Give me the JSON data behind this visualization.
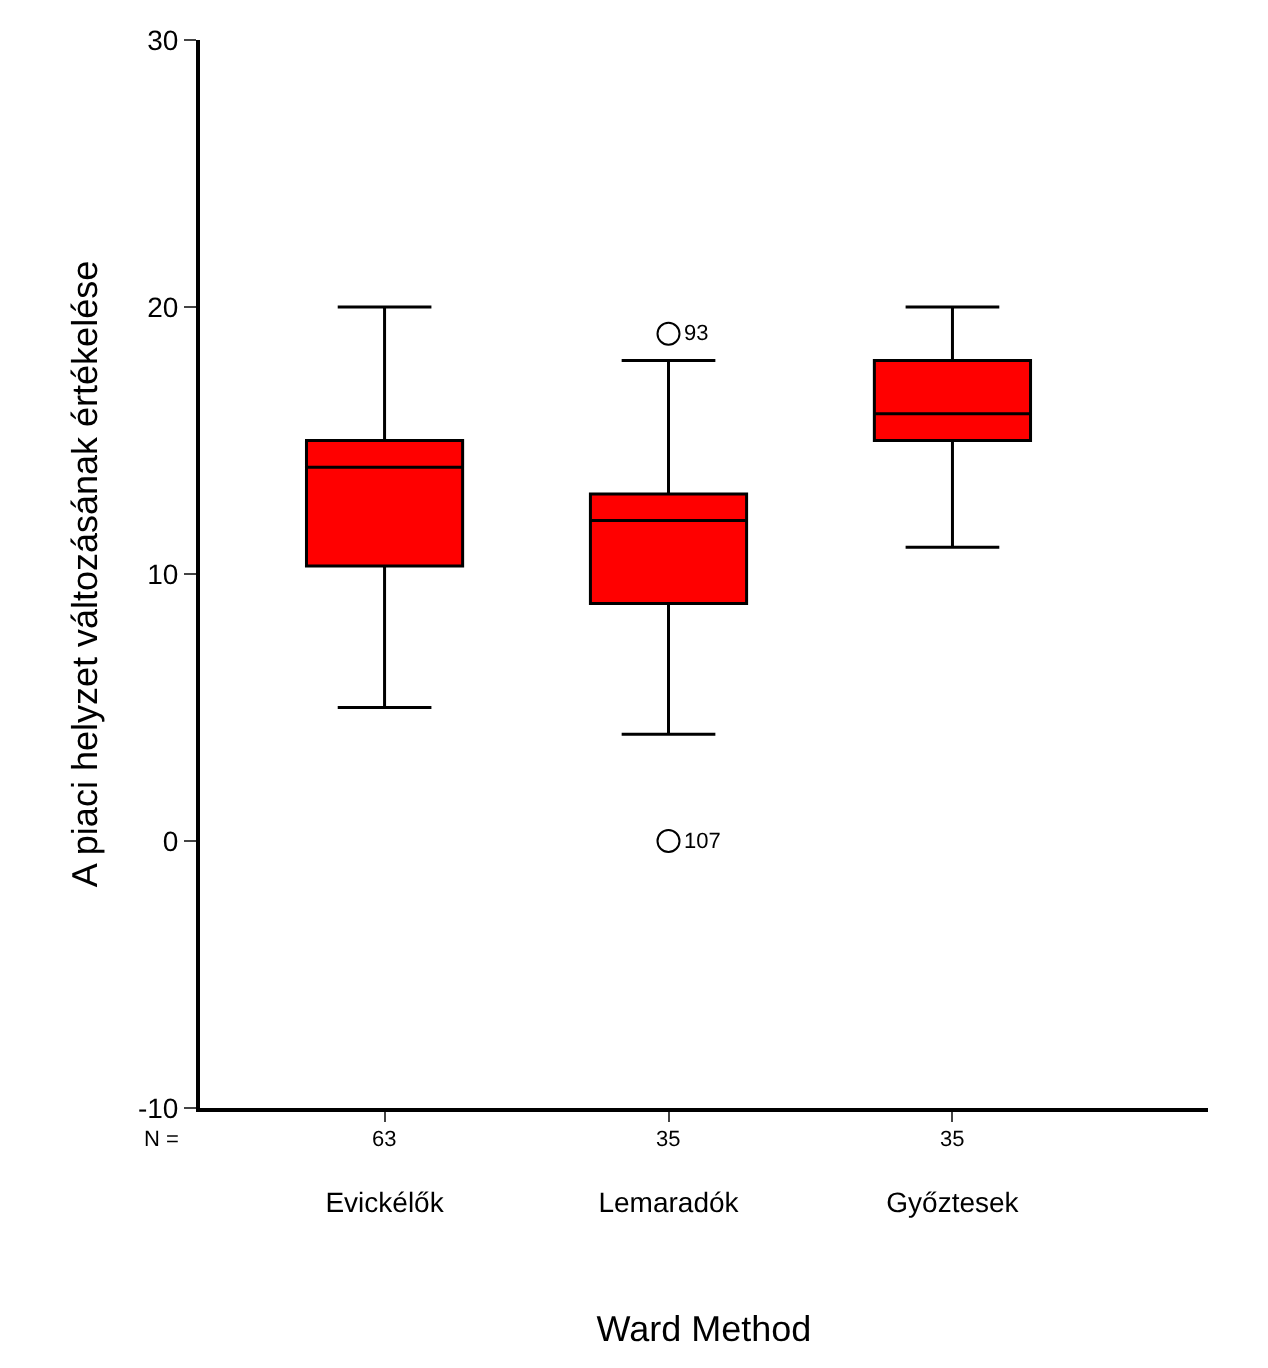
{
  "chart_data": {
    "type": "box",
    "ylabel": "A piaci helyzet változásának értékelése",
    "xlabel": "Ward Method",
    "categories": [
      "Evickélők",
      "Lemaradók",
      "Győztesek"
    ],
    "color": "#ff0000",
    "boxes": [
      {
        "low": 5,
        "q1": 10.3,
        "median": 14,
        "q3": 15,
        "high": 20
      },
      {
        "low": 4,
        "q1": 8.9,
        "median": 12,
        "q3": 13,
        "high": 18,
        "outliers": [
          19,
          0
        ]
      },
      {
        "low": 11,
        "q1": 15,
        "median": 16,
        "q3": 18,
        "high": 20
      }
    ],
    "ylim": [
      -10,
      30
    ],
    "yticks": [
      -10,
      0,
      10,
      20,
      30
    ],
    "annotations": [
      "93",
      "107",
      "N =",
      "63",
      "35",
      "35"
    ]
  }
}
